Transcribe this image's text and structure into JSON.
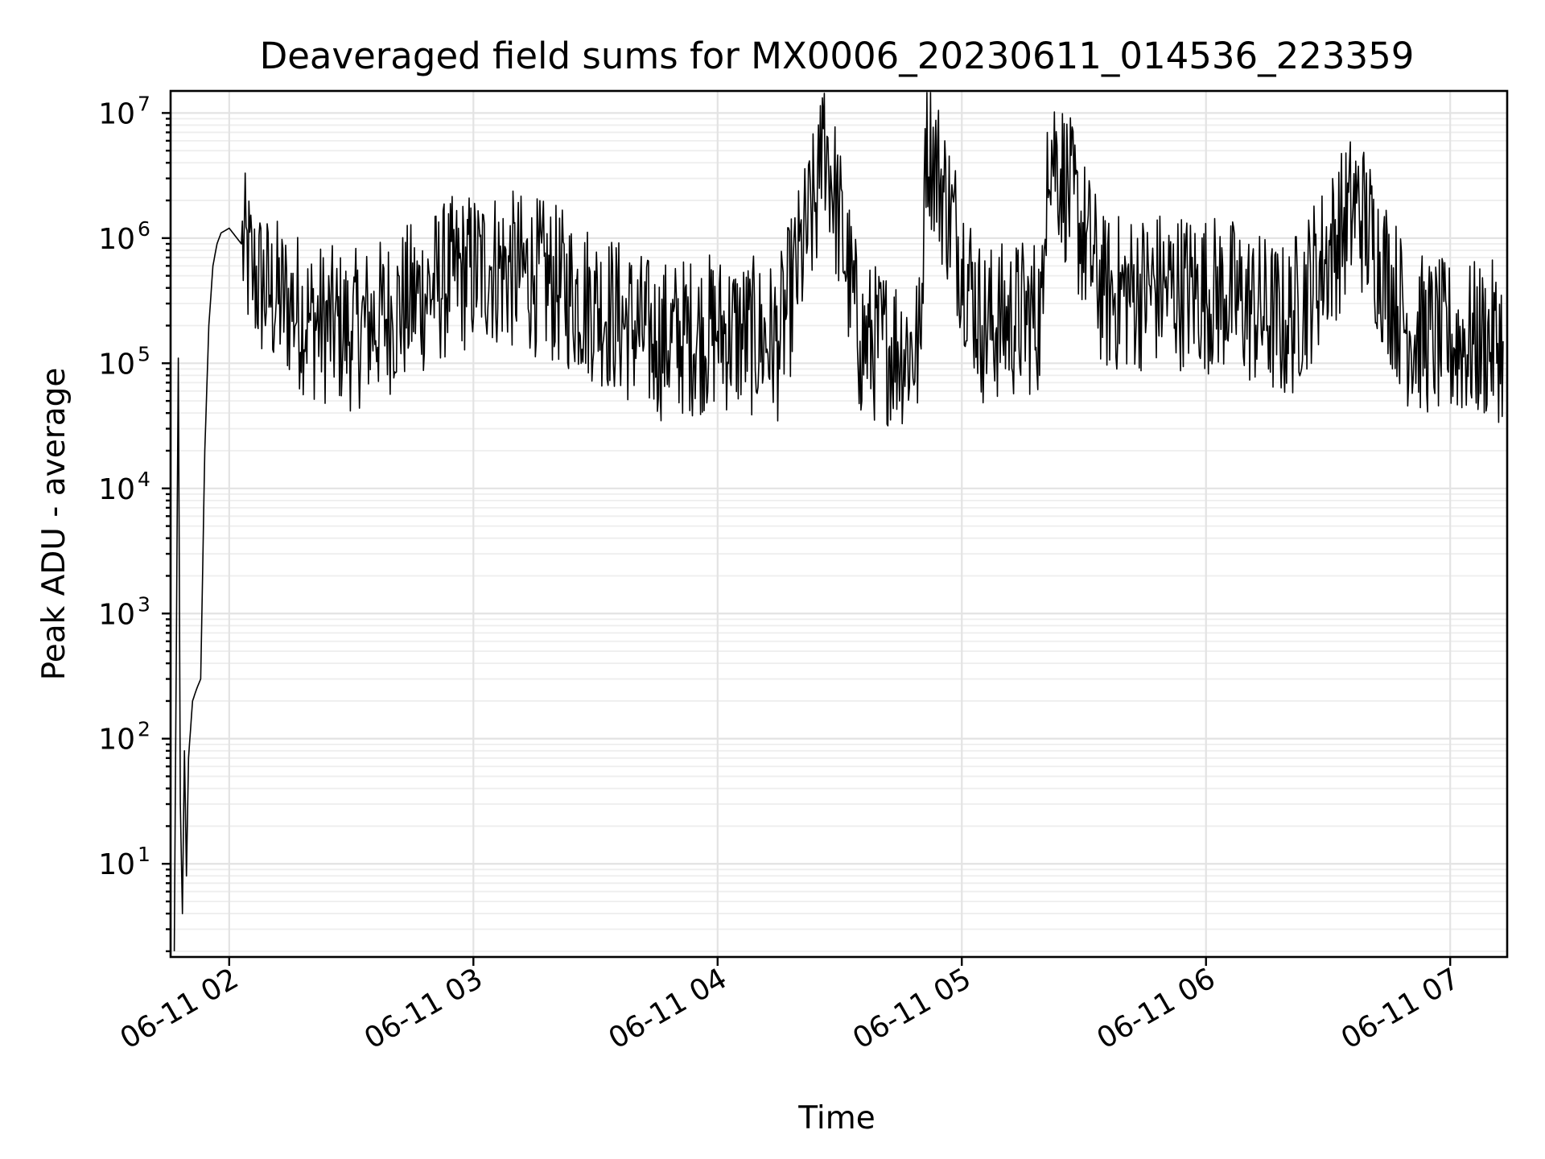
{
  "chart_data": {
    "type": "line",
    "title": "Deaveraged field sums for MX0006_20230611_014536_223359",
    "xlabel": "Time",
    "ylabel": "Peak ADU - average",
    "x_ticks": [
      "06-11 02",
      "06-11 03",
      "06-11 04",
      "06-11 05",
      "06-11 06",
      "06-11 07"
    ],
    "x_range": [
      "2023-06-11 01:45:36",
      "2023-06-11 07:14:00"
    ],
    "y_scale": "log",
    "y_ticks": [
      {
        "base": "10",
        "exp": "1"
      },
      {
        "base": "10",
        "exp": "2"
      },
      {
        "base": "10",
        "exp": "3"
      },
      {
        "base": "10",
        "exp": "4"
      },
      {
        "base": "10",
        "exp": "5"
      },
      {
        "base": "10",
        "exp": "6"
      },
      {
        "base": "10",
        "exp": "7"
      }
    ],
    "ylim": [
      1.8,
      15000000
    ],
    "grid": true,
    "line_color": "#000000",
    "series": [
      {
        "x": [
          "2023-06-11 01:46:30",
          "2023-06-11 01:47:30",
          "2023-06-11 01:48:00",
          "2023-06-11 01:48:30",
          "2023-06-11 01:49:00",
          "2023-06-11 01:49:30",
          "2023-06-11 01:50:00",
          "2023-06-11 01:51:00",
          "2023-06-11 01:52:00",
          "2023-06-11 01:53:00",
          "2023-06-11 01:54:00",
          "2023-06-11 01:55:00",
          "2023-06-11 01:56:00",
          "2023-06-11 01:57:00",
          "2023-06-11 01:58:00",
          "2023-06-11 02:00:00",
          "2023-06-11 02:03:00",
          "2023-06-11 02:06:00",
          "2023-06-11 02:10:00",
          "2023-06-11 02:15:00",
          "2023-06-11 02:20:00",
          "2023-06-11 02:30:00",
          "2023-06-11 02:40:00",
          "2023-06-11 02:55:00",
          "2023-06-11 03:04:00",
          "2023-06-11 03:15:00",
          "2023-06-11 03:30:00",
          "2023-06-11 03:45:00",
          "2023-06-11 04:00:00",
          "2023-06-11 04:15:00",
          "2023-06-11 04:25:00",
          "2023-06-11 04:26:00",
          "2023-06-11 04:35:00",
          "2023-06-11 04:50:00",
          "2023-06-11 04:51:00",
          "2023-06-11 05:05:00",
          "2023-06-11 05:20:00",
          "2023-06-11 05:21:00",
          "2023-06-11 05:35:00",
          "2023-06-11 05:50:00",
          "2023-06-11 06:05:00",
          "2023-06-11 06:20:00",
          "2023-06-11 06:37:00",
          "2023-06-11 06:50:00",
          "2023-06-11 07:00:00",
          "2023-06-11 07:13:00"
        ],
        "y": [
          2,
          110000,
          30,
          4,
          80,
          8,
          70,
          200,
          250,
          300,
          20000,
          200000,
          600000,
          900000,
          1100000,
          1200000,
          900000,
          500000,
          350000,
          300000,
          220000,
          180000,
          250000,
          500000,
          600000,
          500000,
          300000,
          150000,
          180000,
          150000,
          2500000,
          7500000,
          150000,
          130000,
          7500000,
          200000,
          250000,
          7000000,
          350000,
          400000,
          350000,
          200000,
          1900000,
          180000,
          150000,
          150000
        ]
      }
    ]
  }
}
